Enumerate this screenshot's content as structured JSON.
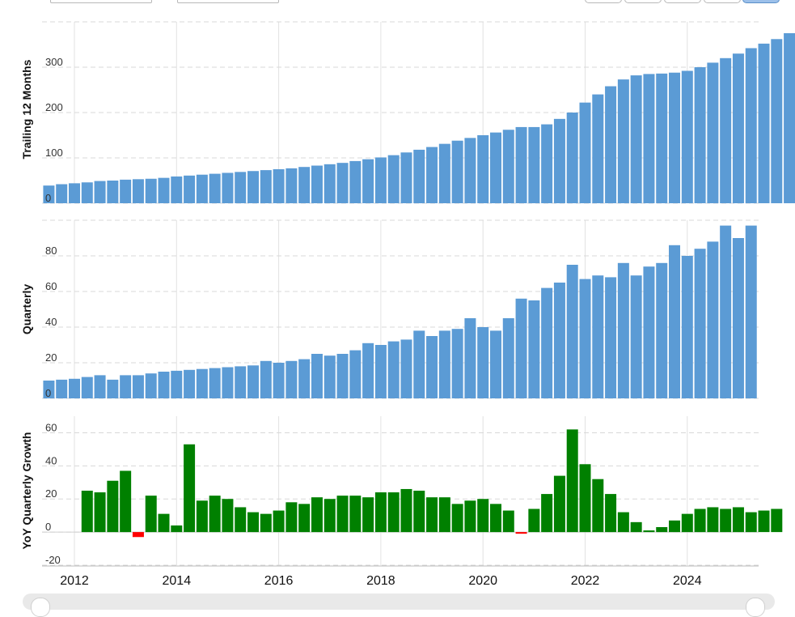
{
  "chart_data": [
    {
      "type": "bar",
      "ylabel": "Trailing 12 Months",
      "ylim": [
        0,
        400
      ],
      "ytick_labels": [
        "0",
        "100",
        "200",
        "300"
      ],
      "color": "#5b9bd5",
      "values": [
        39,
        42,
        44,
        46,
        49,
        50,
        52,
        53,
        54,
        56,
        59,
        61,
        63,
        65,
        67,
        69,
        71,
        73,
        75,
        77,
        80,
        83,
        86,
        89,
        93,
        97,
        101,
        106,
        112,
        118,
        124,
        131,
        138,
        144,
        150,
        156,
        162,
        168,
        168,
        174,
        186,
        200,
        222,
        240,
        258,
        273,
        282,
        285,
        286,
        288,
        292,
        300,
        310,
        320,
        330,
        342,
        352,
        362,
        375
      ]
    },
    {
      "type": "bar",
      "ylabel": "Quarterly",
      "ylim": [
        0,
        100
      ],
      "ytick_labels": [
        "0",
        "20",
        "40",
        "60",
        "80"
      ],
      "color": "#5b9bd5",
      "values": [
        10,
        10.5,
        11,
        12,
        13,
        10.5,
        13,
        13,
        14,
        15,
        15.5,
        16,
        16.5,
        17,
        17.5,
        18,
        18.5,
        21,
        20,
        21,
        22,
        25,
        24,
        25,
        27,
        31,
        30,
        32,
        33,
        38,
        35,
        38,
        39,
        45,
        40,
        38,
        45,
        56,
        55,
        62,
        65,
        75,
        67,
        69,
        68,
        76,
        69,
        74,
        76,
        86,
        80,
        84,
        88,
        97,
        90,
        97
      ]
    },
    {
      "type": "bar",
      "ylabel": "YoY Quarterly Growth",
      "ylim": [
        -20,
        70
      ],
      "ytick_labels": [
        "-20",
        "0",
        "20",
        "40",
        "60"
      ],
      "positive_color": "#008000",
      "negative_color": "#ff0000",
      "values": [
        25,
        24,
        31,
        37,
        -3,
        22,
        11,
        4,
        53,
        19,
        22,
        20,
        15,
        12,
        11,
        13,
        18,
        17,
        21,
        20,
        22,
        22,
        21,
        24,
        24,
        26,
        25,
        21,
        21,
        17,
        19,
        20,
        17,
        13,
        -1,
        14,
        23,
        34,
        62,
        41,
        32,
        23,
        12,
        6,
        1,
        3,
        7,
        11,
        14,
        15,
        14,
        15,
        12,
        13,
        14
      ]
    }
  ],
  "x_axis": {
    "tick_labels": [
      "2012",
      "2014",
      "2016",
      "2018",
      "2020",
      "2022",
      "2024"
    ]
  },
  "colors": {
    "bar_blue": "#5b9bd5",
    "positive_green": "#008000",
    "negative_red": "#ff0000",
    "grid": "#d8d8d8",
    "zoom_active": "#9cc0ea"
  }
}
